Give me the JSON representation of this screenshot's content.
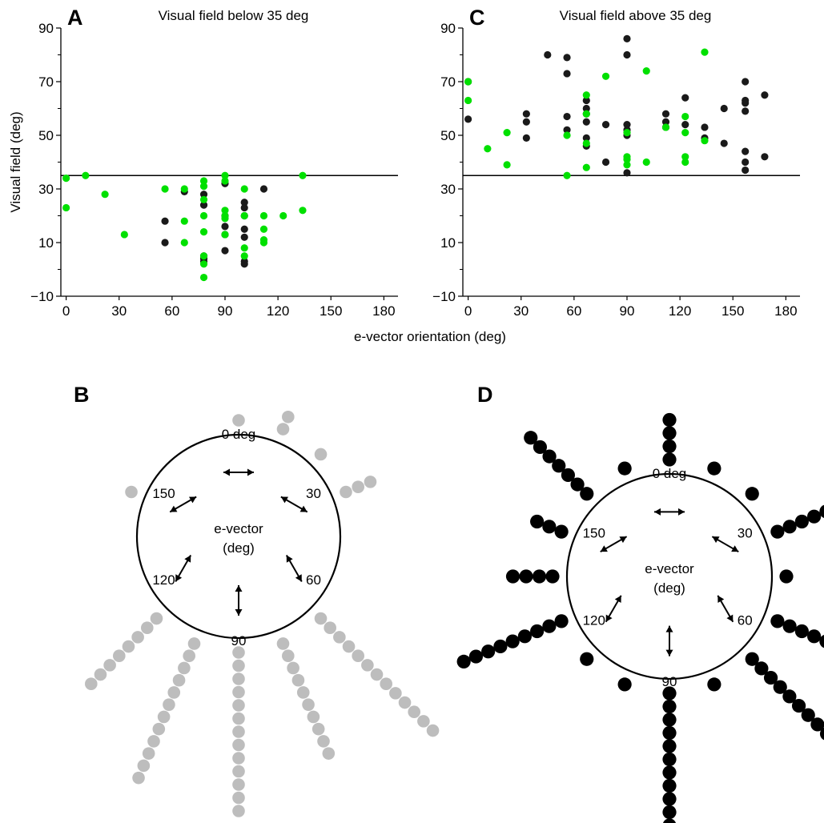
{
  "figure": {
    "x_axis_title": "e-vector orientation (deg)",
    "y_axis_title": "Visual field (deg)"
  },
  "chart_data": [
    {
      "id": "A",
      "panel_label": "A",
      "type": "scatter",
      "title": "Visual field below 35 deg",
      "xlabel": "e-vector orientation (deg)",
      "ylabel": "Visual field (deg)",
      "xlim": [
        -3,
        188
      ],
      "ylim": [
        -10,
        90
      ],
      "x_ticks": [
        0,
        30,
        60,
        90,
        120,
        150,
        180
      ],
      "y_ticks_labeled": [
        -10,
        10,
        30,
        50,
        70,
        90
      ],
      "y_ticks_minor": [
        0,
        20,
        40,
        60,
        80
      ],
      "reference_line_y": 35,
      "colors": {
        "series1": "#1a1a1a",
        "series2": "#00e000",
        "line": "#000000"
      },
      "series": [
        {
          "color": "#1a1a1a",
          "points": [
            [
              56,
              18
            ],
            [
              56,
              10
            ],
            [
              67,
              29
            ],
            [
              78,
              28
            ],
            [
              78,
              24
            ],
            [
              78,
              5
            ],
            [
              78,
              4
            ],
            [
              78,
              3
            ],
            [
              90,
              32
            ],
            [
              90,
              20
            ],
            [
              90,
              16
            ],
            [
              90,
              13
            ],
            [
              90,
              7
            ],
            [
              101,
              25
            ],
            [
              101,
              23
            ],
            [
              101,
              20
            ],
            [
              101,
              15
            ],
            [
              101,
              12
            ],
            [
              101,
              3
            ],
            [
              101,
              2
            ],
            [
              112,
              30
            ]
          ]
        },
        {
          "color": "#00e000",
          "points": [
            [
              0,
              34
            ],
            [
              0,
              23
            ],
            [
              11,
              35
            ],
            [
              22,
              28
            ],
            [
              33,
              13
            ],
            [
              56,
              30
            ],
            [
              67,
              30
            ],
            [
              67,
              18
            ],
            [
              67,
              10
            ],
            [
              78,
              33
            ],
            [
              78,
              31
            ],
            [
              78,
              26
            ],
            [
              78,
              20
            ],
            [
              78,
              14
            ],
            [
              78,
              5
            ],
            [
              78,
              2
            ],
            [
              78,
              -3
            ],
            [
              90,
              35
            ],
            [
              90,
              33
            ],
            [
              90,
              22
            ],
            [
              90,
              20
            ],
            [
              90,
              19
            ],
            [
              90,
              13
            ],
            [
              101,
              30
            ],
            [
              101,
              20
            ],
            [
              101,
              8
            ],
            [
              101,
              5
            ],
            [
              112,
              20
            ],
            [
              112,
              15
            ],
            [
              112,
              11
            ],
            [
              112,
              10
            ],
            [
              123,
              20
            ],
            [
              134,
              35
            ],
            [
              134,
              22
            ]
          ]
        }
      ]
    },
    {
      "id": "C",
      "panel_label": "C",
      "type": "scatter",
      "title": "Visual field above 35 deg",
      "xlabel": "e-vector orientation (deg)",
      "ylabel": "",
      "xlim": [
        -3,
        188
      ],
      "ylim": [
        -10,
        90
      ],
      "x_ticks": [
        0,
        30,
        60,
        90,
        120,
        150,
        180
      ],
      "y_ticks_labeled": [
        -10,
        10,
        30,
        50,
        70,
        90
      ],
      "y_ticks_minor": [
        0,
        20,
        40,
        60,
        80
      ],
      "reference_line_y": 35,
      "colors": {
        "series1": "#1a1a1a",
        "series2": "#00e000",
        "line": "#000000"
      },
      "series": [
        {
          "color": "#1a1a1a",
          "points": [
            [
              0,
              70
            ],
            [
              0,
              56
            ],
            [
              33,
              58
            ],
            [
              33,
              55
            ],
            [
              33,
              49
            ],
            [
              45,
              80
            ],
            [
              56,
              79
            ],
            [
              56,
              73
            ],
            [
              56,
              57
            ],
            [
              56,
              52
            ],
            [
              67,
              63
            ],
            [
              67,
              60
            ],
            [
              67,
              58
            ],
            [
              67,
              55
            ],
            [
              67,
              49
            ],
            [
              67,
              46
            ],
            [
              78,
              54
            ],
            [
              78,
              40
            ],
            [
              90,
              86
            ],
            [
              90,
              80
            ],
            [
              90,
              54
            ],
            [
              90,
              52
            ],
            [
              90,
              50
            ],
            [
              90,
              36
            ],
            [
              112,
              58
            ],
            [
              112,
              55
            ],
            [
              112,
              53
            ],
            [
              123,
              64
            ],
            [
              123,
              54
            ],
            [
              134,
              53
            ],
            [
              134,
              49
            ],
            [
              145,
              60
            ],
            [
              145,
              47
            ],
            [
              157,
              70
            ],
            [
              157,
              63
            ],
            [
              157,
              62
            ],
            [
              157,
              59
            ],
            [
              157,
              44
            ],
            [
              157,
              40
            ],
            [
              157,
              37
            ],
            [
              168,
              65
            ],
            [
              168,
              42
            ]
          ]
        },
        {
          "color": "#00e000",
          "points": [
            [
              0,
              70
            ],
            [
              0,
              63
            ],
            [
              11,
              45
            ],
            [
              22,
              51
            ],
            [
              22,
              39
            ],
            [
              56,
              50
            ],
            [
              56,
              35
            ],
            [
              67,
              65
            ],
            [
              67,
              58
            ],
            [
              67,
              47
            ],
            [
              67,
              38
            ],
            [
              78,
              72
            ],
            [
              90,
              51
            ],
            [
              90,
              42
            ],
            [
              90,
              41
            ],
            [
              90,
              39
            ],
            [
              101,
              74
            ],
            [
              101,
              40
            ],
            [
              112,
              53
            ],
            [
              123,
              57
            ],
            [
              123,
              51
            ],
            [
              123,
              42
            ],
            [
              123,
              40
            ],
            [
              134,
              81
            ],
            [
              134,
              48
            ]
          ]
        }
      ]
    },
    {
      "id": "B",
      "panel_label": "B",
      "type": "radial-dot",
      "center_label_line1": "e-vector",
      "center_label_line2": "(deg)",
      "orientation_labels": [
        {
          "text": "0 deg",
          "angle": 0
        },
        {
          "text": "30",
          "angle": 30
        },
        {
          "text": "60",
          "angle": 60
        },
        {
          "text": "90",
          "angle": 90
        },
        {
          "text": "120",
          "angle": 120
        },
        {
          "text": "150",
          "angle": 150
        }
      ],
      "dot_color": "#bdbdbd",
      "orientation_counts": [
        {
          "angle": 0,
          "count": 1
        },
        {
          "angle": 22.5,
          "count": 2
        },
        {
          "angle": 67.5,
          "count": 3
        },
        {
          "angle": 45,
          "count": 1
        },
        {
          "angle": 135,
          "count": 13
        },
        {
          "angle": 157.5,
          "count": 10
        },
        {
          "angle": 180,
          "count": 13
        },
        {
          "angle": 202.5,
          "count": 12
        },
        {
          "angle": 225,
          "count": 8
        },
        {
          "angle": 292.5,
          "count": 1
        }
      ]
    },
    {
      "id": "D",
      "panel_label": "D",
      "type": "radial-dot",
      "center_label_line1": "e-vector",
      "center_label_line2": "(deg)",
      "orientation_labels": [
        {
          "text": "0 deg",
          "angle": 0
        },
        {
          "text": "30",
          "angle": 30
        },
        {
          "text": "60",
          "angle": 60
        },
        {
          "text": "90",
          "angle": 90
        },
        {
          "text": "120",
          "angle": 120
        },
        {
          "text": "150",
          "angle": 150
        }
      ],
      "dot_color": "#000000",
      "orientation_counts": [
        {
          "angle": 0,
          "count": 4
        },
        {
          "angle": 22.5,
          "count": 1
        },
        {
          "angle": 45,
          "count": 1
        },
        {
          "angle": 67.5,
          "count": 6
        },
        {
          "angle": 90,
          "count": 1
        },
        {
          "angle": 112.5,
          "count": 5
        },
        {
          "angle": 135,
          "count": 10
        },
        {
          "angle": 157.5,
          "count": 1
        },
        {
          "angle": 180,
          "count": 13
        },
        {
          "angle": 202.5,
          "count": 1
        },
        {
          "angle": 225,
          "count": 1
        },
        {
          "angle": 247.5,
          "count": 9
        },
        {
          "angle": 270,
          "count": 4
        },
        {
          "angle": 292.5,
          "count": 3
        },
        {
          "angle": 315,
          "count": 7
        },
        {
          "angle": 337.5,
          "count": 1
        }
      ]
    }
  ]
}
